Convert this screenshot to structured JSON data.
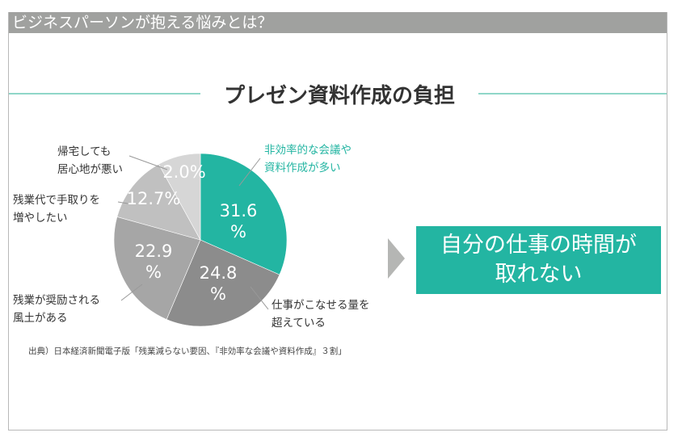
{
  "header": {
    "title": "ビジネスパーソンが抱える悩みとは？"
  },
  "chart_data": {
    "type": "pie",
    "title": "プレゼン資料作成の負担",
    "slices": [
      {
        "label": "非効率的な会議や\n資料作成が多い",
        "value": 31.6,
        "display": "31.6\n%",
        "color": "#23b5a2"
      },
      {
        "label": "仕事がこなせる量を\n超えている",
        "value": 24.8,
        "display": "24.8\n%",
        "color": "#8c8c8c"
      },
      {
        "label": "残業が奨励される\n風土がある",
        "value": 22.9,
        "display": "22.9\n%",
        "color": "#a6a6a6"
      },
      {
        "label": "残業代で手取りを\n増やしたい",
        "value": 12.7,
        "display": "12.7%",
        "color": "#c0c0c0"
      },
      {
        "label": "帰宅しても\n居心地が悪い",
        "value": 2.0,
        "display": "2.0%",
        "color": "#d6d6d6"
      }
    ],
    "source": "出典）日本経済新聞電子版「残業減らない要因、『非効率な会議や資料作成』３割」"
  },
  "conclusion": {
    "line1": "自分の仕事の時間が",
    "line2": "取れない"
  }
}
